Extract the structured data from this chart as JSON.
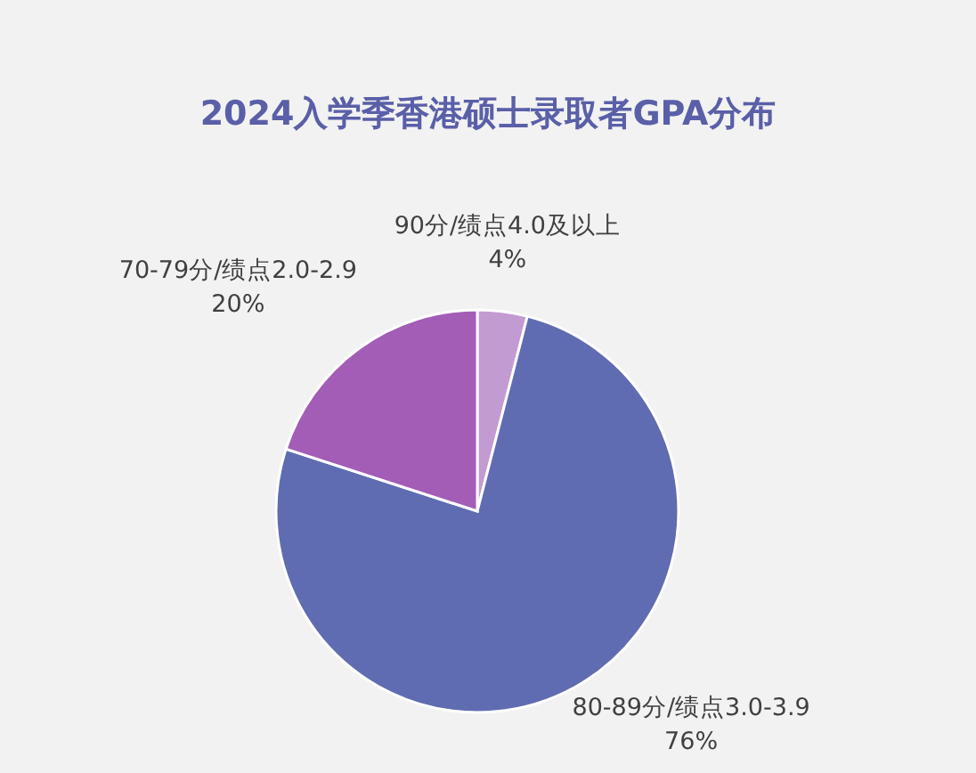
{
  "chart_data": {
    "type": "pie",
    "title": "2024入学季香港硕士录取者GPA分布",
    "categories": [
      "90分/绩点4.0及以上",
      "80-89分/绩点3.0-3.9",
      "70-79分/绩点2.0-2.9"
    ],
    "values": [
      4,
      76,
      20
    ],
    "colors": [
      "#c39bd3",
      "#606cb1",
      "#a35db6"
    ],
    "value_labels": [
      "4%",
      "76%",
      "20%"
    ]
  }
}
